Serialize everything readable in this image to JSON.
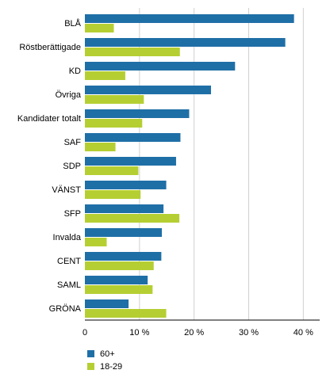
{
  "chart_data": {
    "type": "bar",
    "orientation": "horizontal",
    "categories": [
      "BLÅ",
      "Röstberättigade",
      "KD",
      "Övriga",
      "Kandidater totalt",
      "SAF",
      "SDP",
      "VÄNST",
      "SFP",
      "Invalda",
      "CENT",
      "SAML",
      "GRÖNA"
    ],
    "series": [
      {
        "name": "60+",
        "color": "#1f6fa7",
        "values": [
          38.3,
          36.7,
          27.5,
          23.1,
          19.1,
          17.5,
          16.7,
          14.9,
          14.4,
          14.1,
          14.0,
          11.5,
          8.0
        ]
      },
      {
        "name": "18-29",
        "color": "#b5cf33",
        "values": [
          5.3,
          17.4,
          7.4,
          10.8,
          10.5,
          5.6,
          9.8,
          10.2,
          17.3,
          4.0,
          12.6,
          12.4,
          14.9
        ]
      }
    ],
    "xlim": [
      0,
      43
    ],
    "xticks": [
      0,
      10,
      20,
      30,
      40
    ],
    "xtick_labels": [
      "0",
      "10 %",
      "20 %",
      "30 %",
      "40 %"
    ],
    "grid": "vertical",
    "legend_position": "bottom-left"
  }
}
